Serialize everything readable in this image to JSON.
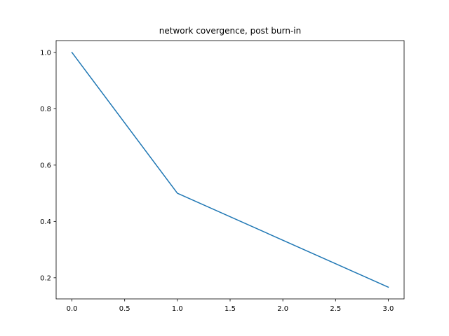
{
  "chart_data": {
    "type": "line",
    "title": "network covergence, post burn-in",
    "xlabel": "",
    "ylabel": "",
    "xlim": [
      -0.15,
      3.15
    ],
    "ylim": [
      0.125,
      1.042
    ],
    "x_ticks": [
      0.0,
      0.5,
      1.0,
      1.5,
      2.0,
      2.5,
      3.0
    ],
    "x_tick_labels": [
      "0.0",
      "0.5",
      "1.0",
      "1.5",
      "2.0",
      "2.5",
      "3.0"
    ],
    "y_ticks": [
      0.2,
      0.4,
      0.6,
      0.8,
      1.0
    ],
    "y_tick_labels": [
      "0.2",
      "0.4",
      "0.6",
      "0.8",
      "1.0"
    ],
    "grid": false,
    "series": [
      {
        "x": [
          0,
          1,
          2,
          3
        ],
        "y": [
          1.0,
          0.5,
          0.3333,
          0.1667
        ],
        "color": "#1f77b4"
      }
    ]
  }
}
